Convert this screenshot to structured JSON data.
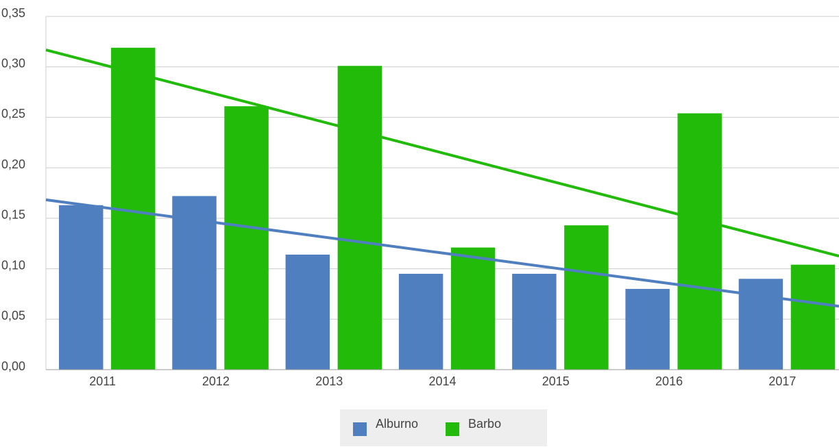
{
  "chart_data": {
    "type": "bar",
    "categories": [
      "2011",
      "2012",
      "2013",
      "2014",
      "2015",
      "2016",
      "2017"
    ],
    "series": [
      {
        "name": "Alburno",
        "color": "#4f7fbf",
        "values": [
          0.163,
          0.172,
          0.114,
          0.095,
          0.095,
          0.08,
          0.09
        ],
        "trendline": true
      },
      {
        "name": "Barbo",
        "color": "#22bb0a",
        "values": [
          0.319,
          0.261,
          0.301,
          0.121,
          0.143,
          0.254,
          0.104
        ],
        "trendline": true
      }
    ],
    "ylim": [
      0,
      0.35
    ],
    "yticks": [
      {
        "value": 0,
        "label": "0,00"
      },
      {
        "value": 0.05,
        "label": "0,05"
      },
      {
        "value": 0.1,
        "label": "0,10"
      },
      {
        "value": 0.15,
        "label": "0,15"
      },
      {
        "value": 0.2,
        "label": "0,20"
      },
      {
        "value": 0.25,
        "label": "0,25"
      },
      {
        "value": 0.3,
        "label": "0,30"
      },
      {
        "value": 0.35,
        "label": "0,35"
      }
    ],
    "grid": true,
    "legend": "bottom"
  }
}
